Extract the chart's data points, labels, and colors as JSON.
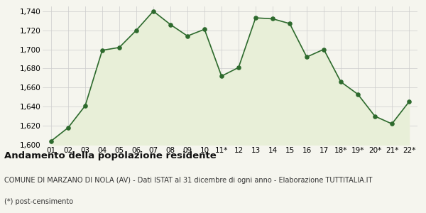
{
  "x_labels": [
    "01",
    "02",
    "03",
    "04",
    "05",
    "06",
    "07",
    "08",
    "09",
    "10",
    "11*",
    "12",
    "13",
    "14",
    "15",
    "16",
    "17",
    "18*",
    "19*",
    "20*",
    "21*",
    "22*"
  ],
  "y_values": [
    1604,
    1618,
    1641,
    1699,
    1702,
    1720,
    1740,
    1726,
    1714,
    1721,
    1672,
    1681,
    1733,
    1732,
    1727,
    1692,
    1700,
    1666,
    1653,
    1630,
    1622,
    1645
  ],
  "line_color": "#2d6a2d",
  "fill_color": "#e8efd8",
  "marker_color": "#2d6a2d",
  "bg_color": "#f5f5ee",
  "grid_color": "#cccccc",
  "ylim_min": 1600,
  "ylim_max": 1745,
  "yticks": [
    1600,
    1620,
    1640,
    1660,
    1680,
    1700,
    1720,
    1740
  ],
  "title": "Andamento della popolazione residente",
  "subtitle1": "COMUNE DI MARZANO DI NOLA (AV) - Dati ISTAT al 31 dicembre di ogni anno - Elaborazione TUTTITALIA.IT",
  "subtitle2": "(*) post-censimento",
  "title_fontsize": 9.5,
  "subtitle_fontsize": 7.0,
  "tick_fontsize": 7.5
}
